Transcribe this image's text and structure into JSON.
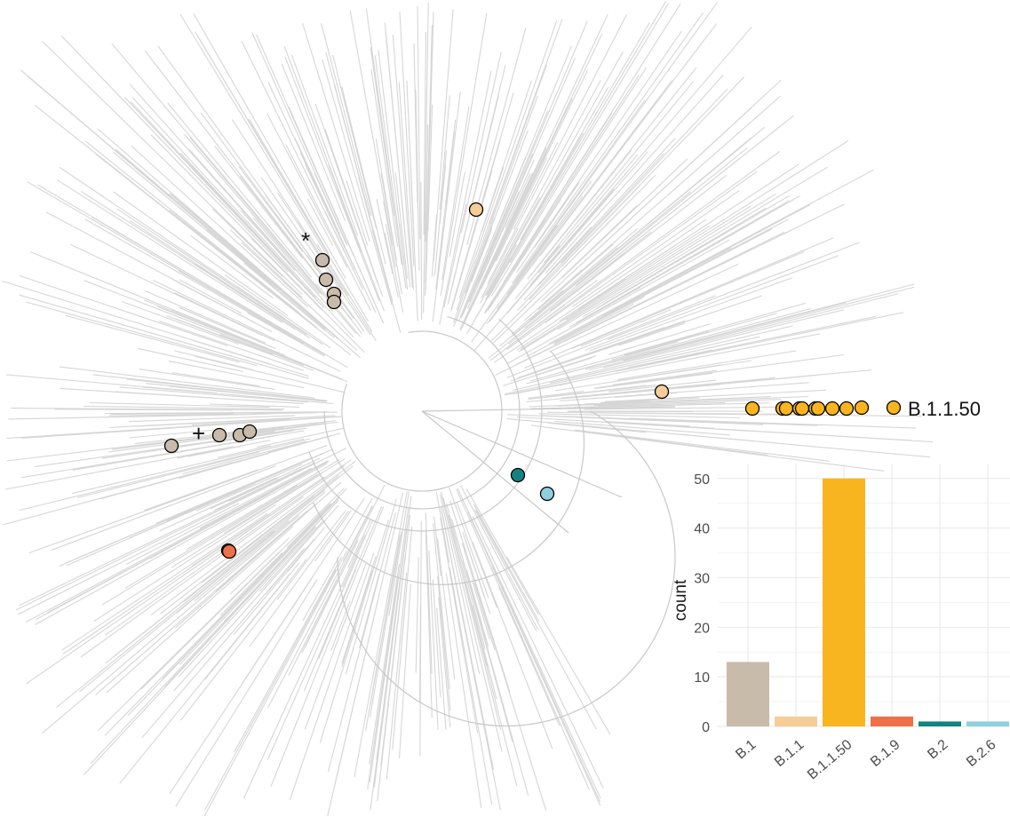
{
  "chart_data": [
    {
      "type": "tree",
      "tree_layout": "circular",
      "branch_color": "#c8c8c8",
      "tip_outline_color": "#000000",
      "annotations": {
        "asterisk": "*",
        "plus": "+",
        "clade_label": "B.1.1.50"
      }
    },
    {
      "type": "bar",
      "categories": [
        "B.1",
        "B.1.1",
        "B.1.1.50",
        "B.1.9",
        "B.2",
        "B.2.6"
      ],
      "values": [
        13,
        2,
        50,
        2,
        1,
        1
      ],
      "colors": [
        "#c9bba9",
        "#f6cd97",
        "#f9b51f",
        "#ee7048",
        "#138380",
        "#8fd0de"
      ],
      "ylabel": "count",
      "xlabel": "",
      "ylim": [
        0,
        53
      ],
      "yticks": [
        "0",
        "10",
        "20",
        "30",
        "40",
        "50"
      ],
      "grid": true
    }
  ]
}
